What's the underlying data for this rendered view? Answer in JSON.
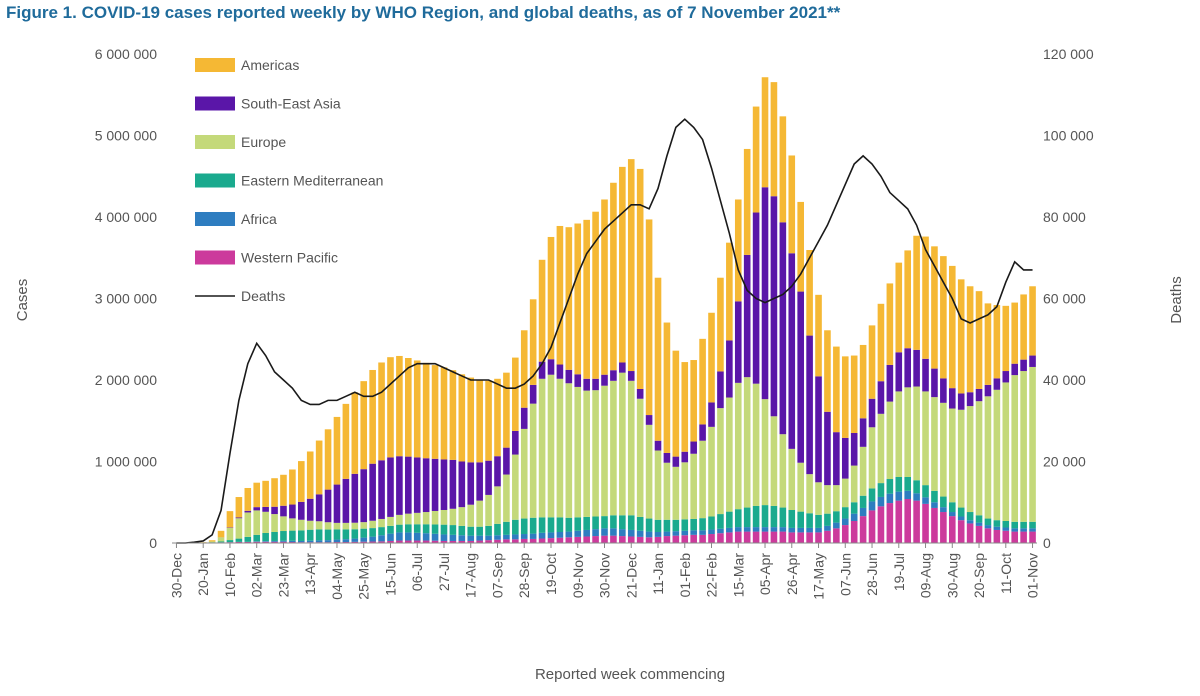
{
  "title": "Figure 1. COVID-19 cases reported weekly by WHO Region, and global deaths, as of 7 November 2021**",
  "colors": {
    "Americas": "#f5b834",
    "South-East Asia": "#5a16a8",
    "Europe": "#c4d97a",
    "Eastern Mediterranean": "#1aaa8e",
    "Africa": "#2e7dc0",
    "Western Pacific": "#cc3a9c",
    "Deaths": "#1a1a1a"
  },
  "chart_data": {
    "type": "bar",
    "stacked": true,
    "xlabel": "Reported week commencing",
    "ylabel": "Cases",
    "y2label": "Deaths",
    "ylim": [
      0,
      6000000
    ],
    "y2lim": [
      0,
      120000
    ],
    "yticks": [
      "0",
      "1 000 000",
      "2 000 000",
      "3 000 000",
      "4 000 000",
      "5 000 000",
      "6 000 000"
    ],
    "y2ticks": [
      "0",
      "20 000",
      "40 000",
      "60 000",
      "80 000",
      "100 000",
      "120 000"
    ],
    "tick_labels": [
      "30-Dec",
      "20-Jan",
      "10-Feb",
      "02-Mar",
      "23-Mar",
      "13-Apr",
      "04-May",
      "25-May",
      "15-Jun",
      "06-Jul",
      "27-Jul",
      "17-Aug",
      "07-Sep",
      "28-Sep",
      "19-Oct",
      "09-Nov",
      "30-Nov",
      "21-Dec",
      "11-Jan",
      "01-Feb",
      "22-Feb",
      "15-Mar",
      "05-Apr",
      "26-Apr",
      "17-May",
      "07-Jun",
      "28-Jun",
      "19-Jul",
      "09-Aug",
      "30-Aug",
      "20-Sep",
      "11-Oct",
      "01-Nov"
    ],
    "legend_position": "top-left",
    "legend": [
      "Americas",
      "South-East Asia",
      "Europe",
      "Eastern Mediterranean",
      "Africa",
      "Western Pacific",
      "Deaths"
    ],
    "weeks": 97,
    "series": [
      {
        "name": "Western Pacific",
        "values": [
          0,
          1000,
          1500,
          3000,
          6000,
          8000,
          10000,
          12000,
          12000,
          15000,
          15000,
          15000,
          15000,
          12000,
          10000,
          10000,
          10000,
          10000,
          12000,
          12000,
          14000,
          16000,
          18000,
          20000,
          25000,
          30000,
          30000,
          30000,
          30000,
          28000,
          25000,
          25000,
          25000,
          25000,
          30000,
          35000,
          40000,
          45000,
          45000,
          50000,
          50000,
          55000,
          60000,
          65000,
          70000,
          75000,
          80000,
          85000,
          90000,
          90000,
          85000,
          80000,
          75000,
          70000,
          75000,
          85000,
          90000,
          95000,
          100000,
          100000,
          110000,
          120000,
          130000,
          140000,
          140000,
          140000,
          140000,
          140000,
          140000,
          130000,
          130000,
          130000,
          130000,
          150000,
          180000,
          220000,
          270000,
          330000,
          400000,
          450000,
          490000,
          520000,
          540000,
          520000,
          480000,
          430000,
          380000,
          330000,
          280000,
          240000,
          210000,
          180000,
          160000,
          150000,
          140000,
          140000,
          140000
        ]
      },
      {
        "name": "Africa",
        "values": [
          0,
          0,
          0,
          0,
          0,
          500,
          1000,
          2000,
          3000,
          5000,
          8000,
          10000,
          12000,
          15000,
          15000,
          18000,
          22000,
          25000,
          30000,
          35000,
          40000,
          50000,
          60000,
          75000,
          90000,
          100000,
          100000,
          95000,
          90000,
          85000,
          80000,
          75000,
          70000,
          65000,
          60000,
          55000,
          55000,
          55000,
          60000,
          60000,
          65000,
          70000,
          70000,
          70000,
          70000,
          75000,
          80000,
          85000,
          90000,
          90000,
          85000,
          80000,
          75000,
          70000,
          60000,
          55000,
          55000,
          55000,
          55000,
          55000,
          55000,
          55000,
          55000,
          55000,
          55000,
          55000,
          55000,
          55000,
          55000,
          55000,
          55000,
          55000,
          55000,
          60000,
          70000,
          80000,
          90000,
          100000,
          110000,
          115000,
          115000,
          110000,
          100000,
          90000,
          80000,
          70000,
          60000,
          50000,
          45000,
          40000,
          40000,
          40000,
          40000,
          40000,
          40000,
          40000,
          40000
        ]
      },
      {
        "name": "Eastern Mediterranean",
        "values": [
          0,
          0,
          500,
          1000,
          3000,
          10000,
          25000,
          40000,
          60000,
          80000,
          100000,
          110000,
          120000,
          125000,
          130000,
          135000,
          135000,
          130000,
          125000,
          120000,
          115000,
          110000,
          105000,
          100000,
          95000,
          95000,
          100000,
          105000,
          110000,
          115000,
          120000,
          120000,
          115000,
          110000,
          110000,
          120000,
          140000,
          160000,
          180000,
          190000,
          195000,
          190000,
          185000,
          180000,
          170000,
          165000,
          160000,
          155000,
          150000,
          160000,
          170000,
          180000,
          170000,
          160000,
          150000,
          145000,
          140000,
          140000,
          140000,
          150000,
          160000,
          180000,
          200000,
          220000,
          240000,
          260000,
          270000,
          260000,
          240000,
          220000,
          200000,
          180000,
          160000,
          150000,
          140000,
          140000,
          140000,
          150000,
          160000,
          170000,
          180000,
          180000,
          170000,
          160000,
          150000,
          140000,
          130000,
          120000,
          110000,
          100000,
          90000,
          80000,
          80000,
          80000,
          80000,
          80000,
          80000
        ]
      },
      {
        "name": "Europe",
        "values": [
          0,
          0,
          1000,
          3000,
          10000,
          50000,
          150000,
          250000,
          300000,
          300000,
          260000,
          220000,
          180000,
          150000,
          130000,
          110000,
          100000,
          90000,
          80000,
          80000,
          80000,
          80000,
          90000,
          100000,
          110000,
          120000,
          130000,
          140000,
          150000,
          165000,
          180000,
          200000,
          230000,
          270000,
          320000,
          380000,
          460000,
          580000,
          800000,
          1100000,
          1400000,
          1700000,
          1750000,
          1700000,
          1650000,
          1600000,
          1550000,
          1550000,
          1600000,
          1650000,
          1750000,
          1650000,
          1450000,
          1150000,
          850000,
          700000,
          650000,
          700000,
          800000,
          950000,
          1100000,
          1300000,
          1400000,
          1550000,
          1600000,
          1500000,
          1300000,
          1100000,
          900000,
          750000,
          600000,
          480000,
          400000,
          350000,
          320000,
          350000,
          450000,
          600000,
          750000,
          850000,
          950000,
          1050000,
          1100000,
          1150000,
          1150000,
          1150000,
          1150000,
          1150000,
          1200000,
          1300000,
          1400000,
          1500000,
          1600000,
          1700000,
          1800000,
          1850000,
          1900000
        ]
      },
      {
        "name": "South-East Asia",
        "values": [
          0,
          0,
          0,
          0,
          0,
          1000,
          5000,
          10000,
          20000,
          40000,
          60000,
          90000,
          130000,
          170000,
          220000,
          270000,
          330000,
          400000,
          470000,
          540000,
          600000,
          650000,
          700000,
          720000,
          730000,
          720000,
          700000,
          680000,
          660000,
          640000,
          620000,
          600000,
          560000,
          520000,
          470000,
          420000,
          370000,
          330000,
          290000,
          260000,
          230000,
          210000,
          190000,
          175000,
          165000,
          155000,
          145000,
          140000,
          135000,
          130000,
          125000,
          120000,
          120000,
          120000,
          120000,
          120000,
          125000,
          130000,
          150000,
          200000,
          300000,
          450000,
          700000,
          1000000,
          1500000,
          2100000,
          2600000,
          2700000,
          2600000,
          2400000,
          2100000,
          1700000,
          1300000,
          900000,
          650000,
          500000,
          400000,
          350000,
          350000,
          400000,
          450000,
          480000,
          480000,
          450000,
          400000,
          350000,
          300000,
          250000,
          200000,
          170000,
          150000,
          140000,
          140000,
          140000,
          140000,
          140000,
          140000
        ]
      },
      {
        "name": "Americas",
        "values": [
          0,
          0,
          1500,
          3000,
          15000,
          80000,
          200000,
          250000,
          280000,
          300000,
          320000,
          350000,
          380000,
          430000,
          500000,
          580000,
          660000,
          740000,
          830000,
          920000,
          1000000,
          1080000,
          1150000,
          1200000,
          1230000,
          1230000,
          1210000,
          1190000,
          1170000,
          1150000,
          1130000,
          1100000,
          1070000,
          1040000,
          1010000,
          980000,
          950000,
          920000,
          900000,
          950000,
          1050000,
          1250000,
          1500000,
          1700000,
          1750000,
          1850000,
          1950000,
          2050000,
          2150000,
          2300000,
          2400000,
          2600000,
          2700000,
          2400000,
          2000000,
          1600000,
          1300000,
          1100000,
          1000000,
          1050000,
          1100000,
          1150000,
          1200000,
          1250000,
          1300000,
          1300000,
          1350000,
          1400000,
          1300000,
          1200000,
          1100000,
          1050000,
          1000000,
          1000000,
          1050000,
          1000000,
          950000,
          900000,
          900000,
          950000,
          1000000,
          1100000,
          1200000,
          1400000,
          1500000,
          1500000,
          1500000,
          1500000,
          1400000,
          1300000,
          1200000,
          1000000,
          900000,
          800000,
          750000,
          800000,
          850000
        ]
      }
    ],
    "deaths": [
      0,
      0,
      200,
      500,
      2000,
      8000,
      22000,
      35000,
      44000,
      49000,
      46000,
      42000,
      40000,
      38000,
      35000,
      34000,
      34000,
      35000,
      35000,
      36000,
      37000,
      36000,
      36000,
      37000,
      39000,
      41000,
      43000,
      44000,
      44000,
      44000,
      43000,
      42000,
      41000,
      40000,
      40000,
      40000,
      39000,
      38000,
      38000,
      39000,
      41000,
      44000,
      48000,
      54000,
      60000,
      66000,
      71000,
      74000,
      77000,
      79000,
      81000,
      83000,
      83000,
      82000,
      87000,
      95000,
      102000,
      104000,
      102000,
      99000,
      92000,
      84000,
      76000,
      67000,
      62000,
      60000,
      59000,
      60000,
      61000,
      63000,
      66000,
      70000,
      74000,
      78000,
      83000,
      88000,
      93000,
      95000,
      93000,
      90000,
      86000,
      84000,
      82000,
      78000,
      72000,
      68000,
      64000,
      60000,
      55000,
      54000,
      55000,
      56000,
      58000,
      64000,
      69000,
      67000,
      67000
    ]
  }
}
